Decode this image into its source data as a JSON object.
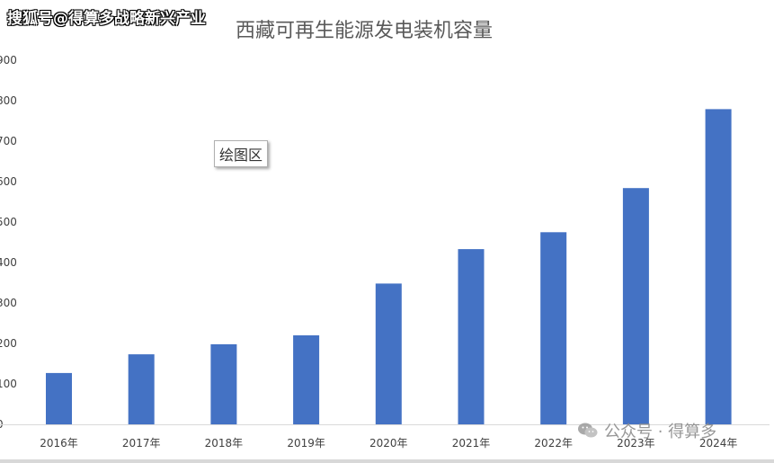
{
  "watermark_top": "搜狐号@得算多战略新兴产业",
  "tooltip": "绘图区",
  "watermark_bottom": "公众号 · 得算多",
  "colors": {
    "bar": "#4472C4",
    "axis": "#D9D9D9",
    "tick_text": "#404040",
    "title": "#595959"
  },
  "chart_data": {
    "type": "bar",
    "title": "西藏可再生能源发电装机容量",
    "xlabel": "",
    "ylabel": "",
    "categories": [
      "2016年",
      "2017年",
      "2018年",
      "2019年",
      "2020年",
      "2021年",
      "2022年",
      "2023年",
      "2024年"
    ],
    "values": [
      127,
      173,
      198,
      220,
      348,
      433,
      475,
      584,
      779
    ],
    "ylim": [
      0,
      900
    ],
    "grid": false,
    "legend": "none"
  }
}
